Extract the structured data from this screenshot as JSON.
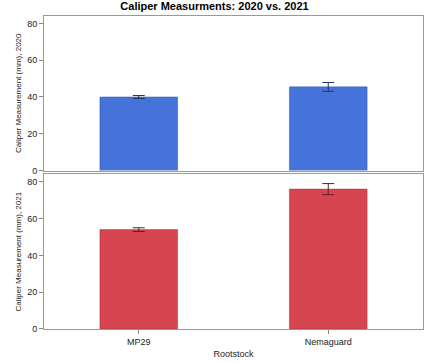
{
  "chart_data": [
    {
      "type": "bar",
      "title": "Caliper Measurments: 2020 vs. 2021",
      "categories": [
        "MP29",
        "Nemaguard"
      ],
      "values": [
        40,
        45.5
      ],
      "errors": [
        0.8,
        2.4
      ],
      "color": "#4573d9",
      "y_label": "Caliper Measurement (mm), 2020",
      "ylim": [
        0,
        84
      ],
      "yticks": [
        0,
        20,
        40,
        60,
        80
      ],
      "grid": false,
      "tick_labels": "y"
    },
    {
      "type": "bar",
      "categories": [
        "MP29",
        "Nemaguard"
      ],
      "values": [
        54,
        76
      ],
      "errors": [
        1,
        3
      ],
      "color": "#d64550",
      "x_label": "Rootstock",
      "y_label": "Caliper Measurement (mm), 2021",
      "ylim": [
        0,
        84
      ],
      "yticks": [
        0,
        20,
        40,
        60,
        80
      ],
      "grid": false
    }
  ]
}
